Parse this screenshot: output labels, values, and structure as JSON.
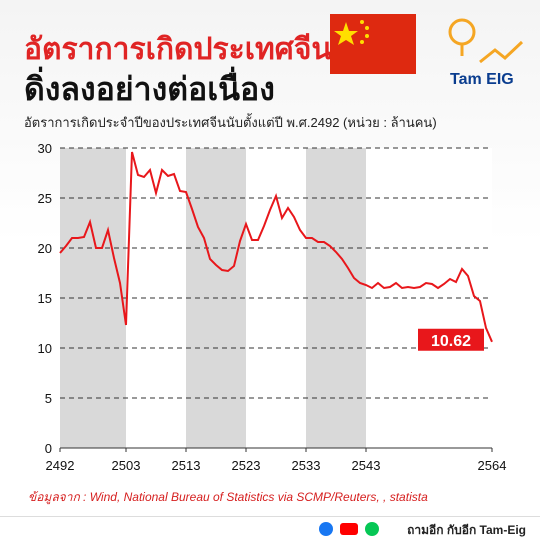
{
  "header": {
    "title_line1": "อัตราการเกิดประเทศจีน",
    "title_line2": "ดิ่งลงอย่างต่อเนื่อง",
    "logo": "Tam EIG"
  },
  "chart_data": {
    "type": "line",
    "subtitle": "อัตราการเกิดประจำปีของประเทศจีนนับตั้งแต่ปี พ.ศ.2492 (หน่วย : ล้านคน)",
    "x": [
      2492,
      2493,
      2494,
      2495,
      2496,
      2497,
      2498,
      2499,
      2500,
      2501,
      2502,
      2503,
      2504,
      2505,
      2506,
      2507,
      2508,
      2509,
      2510,
      2511,
      2512,
      2513,
      2514,
      2515,
      2516,
      2517,
      2518,
      2519,
      2520,
      2521,
      2522,
      2523,
      2524,
      2525,
      2526,
      2527,
      2528,
      2529,
      2530,
      2531,
      2532,
      2533,
      2534,
      2535,
      2536,
      2537,
      2538,
      2539,
      2540,
      2541,
      2542,
      2543,
      2544,
      2545,
      2546,
      2547,
      2548,
      2549,
      2550,
      2551,
      2552,
      2553,
      2554,
      2555,
      2556,
      2557,
      2558,
      2559,
      2560,
      2561,
      2562,
      2563,
      2564
    ],
    "series": [
      {
        "name": "อัตราการเกิด",
        "color": "#e8171b",
        "values": [
          19.5,
          20.2,
          21.0,
          21.0,
          21.1,
          22.6,
          20.0,
          20.0,
          21.8,
          19.0,
          16.5,
          12.3,
          29.6,
          27.3,
          27.1,
          27.8,
          25.5,
          27.8,
          27.2,
          27.4,
          25.7,
          25.6,
          23.9,
          22.1,
          21.0,
          18.9,
          18.3,
          17.8,
          17.7,
          18.2,
          20.7,
          22.4,
          20.8,
          20.8,
          22.2,
          23.8,
          25.2,
          23.0,
          24.0,
          23.1,
          21.8,
          21.0,
          21.0,
          20.6,
          20.6,
          20.2,
          19.6,
          18.9,
          18.0,
          17.0,
          16.5,
          16.3,
          16.0,
          16.5,
          16.0,
          16.1,
          16.5,
          16.0,
          16.1,
          16.0,
          16.1,
          16.5,
          16.4,
          16.0,
          16.4,
          16.9,
          16.6,
          17.9,
          17.2,
          15.2,
          14.7,
          12.0,
          10.62
        ]
      }
    ],
    "xlim": [
      2492,
      2564
    ],
    "xticks": [
      2492,
      2503,
      2513,
      2523,
      2533,
      2543,
      2564
    ],
    "ylim": [
      0,
      30
    ],
    "yticks": [
      0,
      5,
      10,
      15,
      20,
      25,
      30
    ],
    "grid": true,
    "source": "ข้อมูลจาก : Wind, National Bureau of Statistics via SCMP/Reuters, , statista"
  },
  "footer": "ถามอีก กับอีก Tam-Eig"
}
